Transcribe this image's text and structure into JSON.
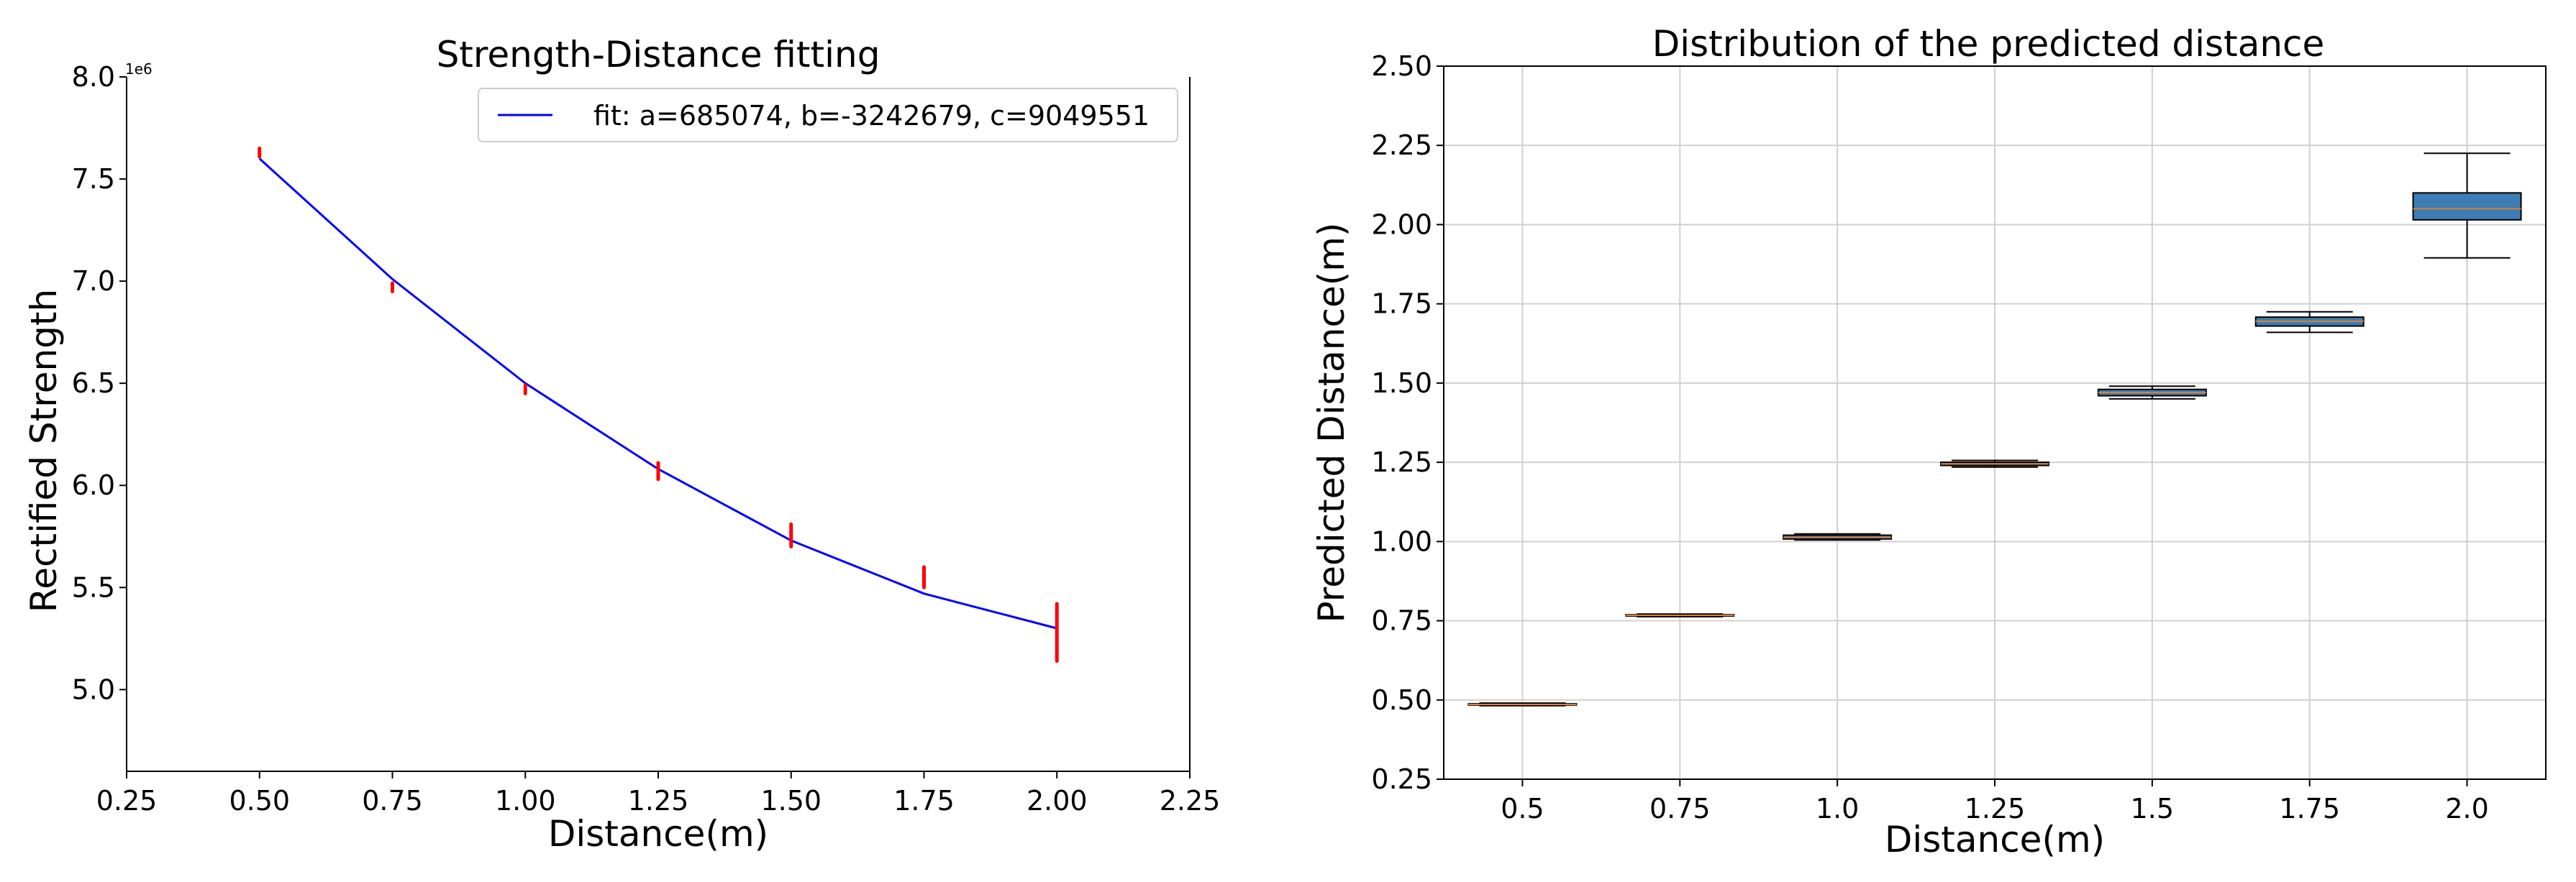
{
  "chart_data": [
    {
      "type": "line+scatter",
      "title": "Strength-Distance fitting",
      "xlabel": "Distance(m)",
      "ylabel": "Rectified Strength",
      "y_offset_label": "1e6",
      "xlim": [
        0.25,
        2.25
      ],
      "ylim": [
        4.6,
        8.0
      ],
      "x_ticks": [
        "0.25",
        "0.50",
        "0.75",
        "1.00",
        "1.25",
        "1.50",
        "1.75",
        "2.00",
        "2.25"
      ],
      "y_ticks": [
        "5.0",
        "5.5",
        "6.0",
        "6.5",
        "7.0",
        "7.5",
        "8.0"
      ],
      "x_tick_values": [
        0.25,
        0.5,
        0.75,
        1.0,
        1.25,
        1.5,
        1.75,
        2.0,
        2.25
      ],
      "y_tick_values": [
        5.0,
        5.5,
        6.0,
        6.5,
        7.0,
        7.5,
        8.0
      ],
      "legend_position": "top-right",
      "fit": {
        "name": "fit: a=685074, b=-3242679, c=9049551",
        "color": "#0000ff",
        "x": [
          0.5,
          0.75,
          1.0,
          1.25,
          1.5,
          1.75,
          2.0
        ],
        "y": [
          7.6,
          7.01,
          6.5,
          6.08,
          5.73,
          5.47,
          5.3
        ]
      },
      "scatter": {
        "color": "#ff0000",
        "points": [
          {
            "x": 0.5,
            "y_min": 7.61,
            "y_max": 7.65
          },
          {
            "x": 0.75,
            "y_min": 6.95,
            "y_max": 6.99
          },
          {
            "x": 1.0,
            "y_min": 6.45,
            "y_max": 6.49
          },
          {
            "x": 1.25,
            "y_min": 6.03,
            "y_max": 6.11
          },
          {
            "x": 1.5,
            "y_min": 5.7,
            "y_max": 5.81
          },
          {
            "x": 1.75,
            "y_min": 5.5,
            "y_max": 5.6
          },
          {
            "x": 2.0,
            "y_min": 5.14,
            "y_max": 5.42
          }
        ]
      }
    },
    {
      "type": "box",
      "title": "Distribution of the predicted distance",
      "xlabel": "Distance(m)",
      "ylabel": "Predicted Distance(m)",
      "ylim": [
        0.25,
        2.5
      ],
      "grid": true,
      "categories": [
        "0.5",
        "0.75",
        "1.0",
        "1.25",
        "1.5",
        "1.75",
        "2.0"
      ],
      "y_ticks": [
        "0.25",
        "0.50",
        "0.75",
        "1.00",
        "1.25",
        "1.50",
        "1.75",
        "2.00",
        "2.25",
        "2.50"
      ],
      "y_tick_values": [
        0.25,
        0.5,
        0.75,
        1.0,
        1.25,
        1.5,
        1.75,
        2.0,
        2.25,
        2.5
      ],
      "box_color": "#3d7db5",
      "median_color": "#e08030",
      "boxes": [
        {
          "category": "0.5",
          "whisker_low": 0.482,
          "q1": 0.484,
          "median": 0.486,
          "q3": 0.488,
          "whisker_high": 0.49
        },
        {
          "category": "0.75",
          "whisker_low": 0.763,
          "q1": 0.765,
          "median": 0.767,
          "q3": 0.769,
          "whisker_high": 0.771
        },
        {
          "category": "1.0",
          "whisker_low": 1.005,
          "q1": 1.008,
          "median": 1.013,
          "q3": 1.02,
          "whisker_high": 1.024
        },
        {
          "category": "1.25",
          "whisker_low": 1.235,
          "q1": 1.24,
          "median": 1.245,
          "q3": 1.25,
          "whisker_high": 1.256
        },
        {
          "category": "1.5",
          "whisker_low": 1.45,
          "q1": 1.46,
          "median": 1.47,
          "q3": 1.48,
          "whisker_high": 1.49
        },
        {
          "category": "1.75",
          "whisker_low": 1.66,
          "q1": 1.68,
          "median": 1.695,
          "q3": 1.708,
          "whisker_high": 1.725
        },
        {
          "category": "2.0",
          "whisker_low": 1.895,
          "q1": 2.015,
          "median": 2.05,
          "q3": 2.1,
          "whisker_high": 2.225
        }
      ]
    }
  ]
}
